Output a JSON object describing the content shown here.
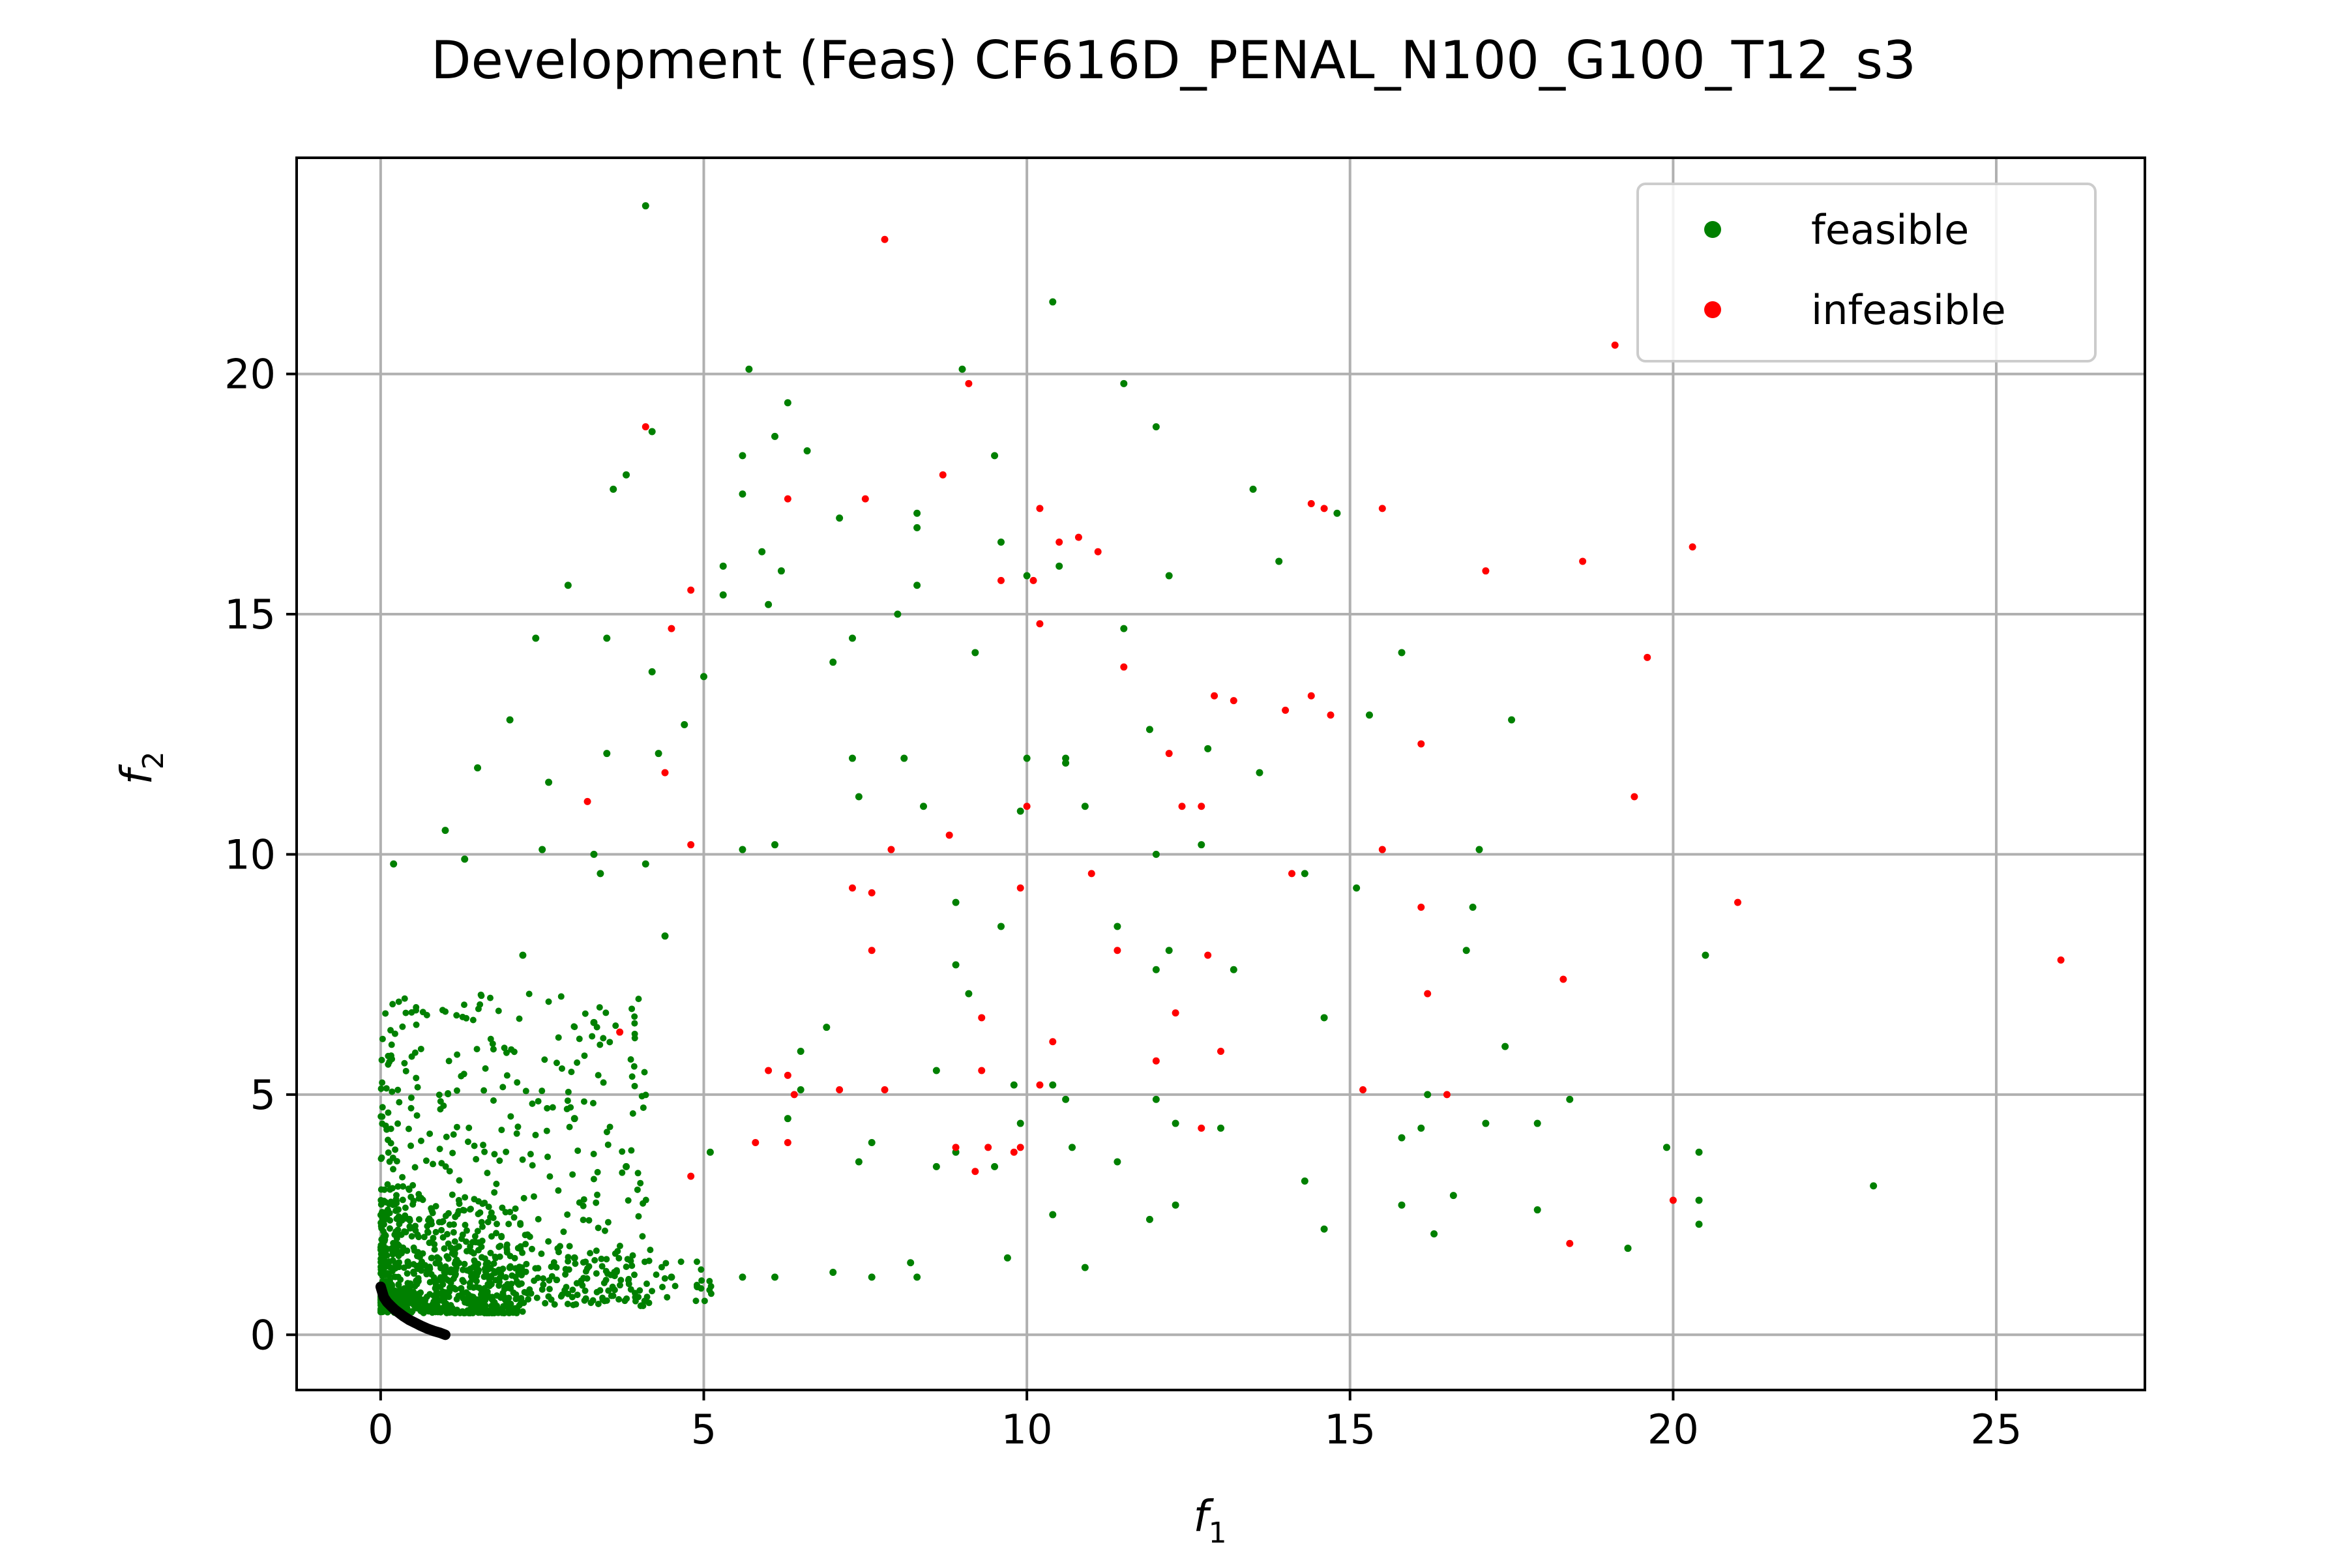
{
  "chart_data": {
    "type": "scatter",
    "title": "Development (Feas) CF616D_PENAL_N100_G100_T12_s3",
    "xlabel": {
      "base": "f",
      "sub": "1"
    },
    "ylabel": {
      "base": "f",
      "sub": "2"
    },
    "xlim": [
      -1.3,
      27.3
    ],
    "ylim": [
      -1.15,
      24.5
    ],
    "x_ticks": [
      0,
      5,
      10,
      15,
      20,
      25
    ],
    "y_ticks": [
      0,
      5,
      10,
      15,
      20
    ],
    "grid": true,
    "legend_position": "top-right",
    "colors": {
      "feasible": "#008000",
      "infeasible": "#ff0000",
      "front": "#000000",
      "grid": "#b0b0b0"
    },
    "series": [
      {
        "name": "feasible",
        "label": "feasible",
        "x": [
          4.1,
          10.4,
          5.7,
          6.3,
          9.0,
          11.5,
          12.0,
          4.2,
          3.8,
          5.6,
          6.1,
          6.6,
          3.6,
          9.5,
          5.6,
          13.5,
          14.8,
          8.3,
          8.3,
          7.1,
          7.0,
          10.5,
          2.9,
          13.9,
          5.3,
          5.9,
          6.2,
          10.0,
          6.0,
          5.3,
          8.3,
          12.2,
          3.5,
          9.6,
          11.5,
          7.3,
          8.0,
          10.6,
          9.2,
          2.4,
          15.8,
          4.3,
          5.0,
          4.2,
          2.0,
          4.7,
          15.3,
          17.5,
          11.9,
          10.0,
          3.5,
          10.6,
          2.6,
          1.5,
          8.1,
          10.9,
          12.8,
          13.6,
          1.0,
          7.3,
          9.9,
          7.4,
          8.4,
          4.1,
          3.3,
          12.0,
          0.2,
          1.3,
          2.5,
          3.4,
          12.7,
          17.0,
          5.6,
          6.1,
          16.8,
          8.9,
          15.1,
          20.5,
          14.3,
          3.3,
          6.9,
          13.2,
          9.6,
          11.4,
          16.9,
          4.4,
          2.2,
          12.2,
          17.4,
          8.9,
          12.0,
          9.1,
          18.4,
          14.6,
          16.2,
          10.4,
          19.9,
          16.6,
          19.3,
          14.3,
          20.4,
          23.1,
          16.3,
          12.0,
          15.8,
          6.5,
          3.0,
          8.6,
          9.9,
          9.8,
          5.1,
          10.6,
          7.6,
          3.8,
          7.4,
          8.6,
          8.9,
          12.3,
          6.3,
          6.5,
          10.7,
          11.9,
          14.6,
          13.0,
          17.9,
          16.1,
          17.1,
          20.4,
          20.4,
          11.4,
          9.5,
          10.4,
          8.2,
          9.7,
          10.9,
          7.6,
          4.5,
          4.9,
          5.6,
          3.0,
          2.0,
          1.5,
          8.3,
          7.0,
          6.1,
          19.3,
          15.8,
          17.9,
          12.3
        ],
        "y": [
          23.5,
          21.5,
          20.1,
          19.4,
          20.1,
          19.8,
          18.9,
          18.8,
          17.9,
          18.3,
          18.7,
          18.4,
          17.6,
          18.3,
          17.5,
          17.6,
          17.1,
          17.1,
          16.8,
          17.0,
          14.0,
          16.0,
          15.6,
          16.1,
          16.0,
          16.3,
          15.9,
          15.8,
          15.2,
          15.4,
          15.6,
          15.8,
          14.5,
          16.5,
          14.7,
          14.5,
          15.0,
          12.0,
          14.2,
          14.5,
          14.2,
          12.1,
          13.7,
          13.8,
          12.8,
          12.7,
          12.9,
          12.8,
          12.6,
          12.0,
          12.1,
          11.9,
          11.5,
          11.8,
          12.0,
          11.0,
          12.2,
          11.7,
          10.5,
          12.0,
          10.9,
          11.2,
          11.0,
          9.8,
          10.0,
          10.0,
          9.8,
          9.9,
          10.1,
          9.6,
          10.2,
          10.1,
          10.1,
          10.2,
          8.0,
          9.0,
          9.3,
          7.9,
          9.6,
          6.5,
          6.4,
          7.6,
          8.5,
          8.5,
          8.9,
          8.3,
          7.9,
          8.0,
          6.0,
          7.7,
          7.6,
          7.1,
          4.9,
          6.6,
          5.0,
          5.2,
          3.9,
          2.9,
          1.8,
          3.2,
          2.3,
          3.1,
          2.1,
          4.9,
          4.1,
          5.9,
          4.5,
          5.5,
          4.4,
          5.2,
          3.8,
          4.9,
          4.0,
          3.5,
          3.6,
          3.5,
          3.8,
          2.7,
          4.5,
          5.1,
          3.9,
          2.4,
          2.2,
          4.3,
          4.4,
          4.3,
          4.4,
          2.8,
          3.8,
          3.6,
          3.5,
          2.5,
          1.5,
          1.6,
          1.4,
          1.2,
          1.2,
          1.0,
          1.2,
          1.6,
          1.4,
          1.3,
          1.2,
          1.3,
          1.2,
          1.8,
          2.7,
          2.6,
          4.4
        ]
      },
      {
        "name": "infeasible",
        "label": "infeasible",
        "x": [
          7.8,
          4.1,
          9.1,
          19.1,
          8.7,
          6.3,
          7.5,
          10.2,
          10.5,
          10.8,
          11.1,
          9.6,
          14.4,
          14.6,
          15.5,
          20.3,
          10.1,
          10.2,
          11.5,
          14.4,
          17.1,
          18.6,
          4.8,
          4.5,
          13.2,
          12.9,
          19.6,
          14.0,
          14.7,
          12.7,
          16.1,
          4.4,
          3.2,
          10.0,
          9.9,
          11.0,
          12.4,
          12.2,
          19.4,
          8.8,
          4.8,
          7.3,
          7.6,
          7.9,
          15.5,
          16.1,
          21.0,
          26.0,
          7.6,
          11.4,
          12.8,
          10.4,
          10.2,
          13.0,
          9.3,
          18.3,
          16.2,
          12.3,
          6.3,
          6.4,
          6.0,
          9.3,
          7.8,
          9.9,
          5.8,
          12.0,
          15.2,
          12.7,
          18.4,
          16.5,
          20.0,
          7.1,
          9.8,
          4.8,
          6.3,
          14.1,
          9.2,
          3.7,
          8.9,
          9.4
        ],
        "y": [
          22.8,
          18.9,
          19.8,
          20.6,
          17.9,
          17.4,
          17.4,
          17.2,
          16.5,
          16.6,
          16.3,
          15.7,
          17.3,
          17.2,
          17.2,
          16.4,
          15.7,
          14.8,
          13.9,
          13.3,
          15.9,
          16.1,
          15.5,
          14.7,
          13.2,
          13.3,
          14.1,
          13.0,
          12.9,
          11.0,
          12.3,
          11.7,
          11.1,
          11.0,
          9.3,
          9.6,
          11.0,
          12.1,
          11.2,
          10.4,
          10.2,
          9.3,
          9.2,
          10.1,
          10.1,
          8.9,
          9.0,
          7.8,
          8.0,
          8.0,
          7.9,
          6.1,
          5.2,
          5.9,
          6.6,
          7.4,
          7.1,
          6.7,
          5.4,
          5.0,
          5.5,
          5.5,
          5.1,
          3.9,
          4.0,
          5.7,
          5.1,
          4.3,
          1.9,
          5.0,
          2.8,
          5.1,
          3.8,
          3.3,
          4.0,
          9.6,
          3.4,
          6.3,
          3.9,
          3.9
        ]
      },
      {
        "name": "pareto-front",
        "label": "",
        "x": [
          0.0,
          0.05,
          0.1,
          0.16,
          0.22,
          0.29,
          0.36,
          0.44,
          0.53,
          0.62,
          0.72,
          0.82,
          0.92,
          1.0
        ],
        "y": [
          1.0,
          0.78,
          0.68,
          0.6,
          0.52,
          0.45,
          0.38,
          0.31,
          0.25,
          0.19,
          0.13,
          0.08,
          0.04,
          0.0
        ]
      }
    ]
  }
}
